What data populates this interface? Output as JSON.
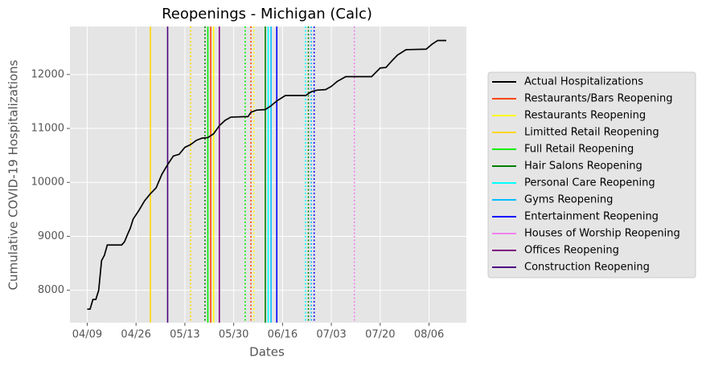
{
  "chart_data": {
    "type": "line",
    "title": "Reopenings - Michigan (Calc)",
    "x_label": "Dates",
    "y_label": "Cumulative COVID-19 Hospitalizations",
    "xlim": [
      "04/03",
      "08/19"
    ],
    "xticks": [
      "04/09",
      "04/26",
      "05/13",
      "05/30",
      "06/16",
      "07/03",
      "07/20",
      "08/06"
    ],
    "ylim": [
      7400,
      12890
    ],
    "yticks": [
      8000,
      9000,
      10000,
      11000,
      12000
    ],
    "grid": true,
    "legend": "right",
    "series": [
      {
        "name": "Actual Hospitalizations",
        "color": "#000000",
        "x": [
          "04/09",
          "04/10",
          "04/11",
          "04/12",
          "04/13",
          "04/14",
          "04/15",
          "04/16",
          "04/21",
          "04/22",
          "04/23",
          "04/24",
          "04/25",
          "04/27",
          "04/29",
          "05/01",
          "05/03",
          "05/05",
          "05/07",
          "05/09",
          "05/11",
          "05/13",
          "05/15",
          "05/17",
          "05/19",
          "05/21",
          "05/23",
          "05/25",
          "05/27",
          "05/29",
          "06/04",
          "06/05",
          "06/07",
          "06/10",
          "06/12",
          "06/14",
          "06/17",
          "06/24",
          "06/26",
          "06/28",
          "07/01",
          "07/03",
          "07/05",
          "07/08",
          "07/17",
          "07/20",
          "07/22",
          "07/24",
          "07/26",
          "07/29",
          "08/05",
          "08/07",
          "08/09",
          "08/12"
        ],
        "values": [
          7650,
          7650,
          7830,
          7830,
          8000,
          8550,
          8650,
          8840,
          8840,
          8900,
          9030,
          9150,
          9320,
          9480,
          9660,
          9790,
          9900,
          10150,
          10330,
          10490,
          10520,
          10650,
          10700,
          10780,
          10820,
          10830,
          10900,
          11050,
          11150,
          11210,
          11220,
          11300,
          11340,
          11350,
          11420,
          11510,
          11610,
          11610,
          11680,
          11710,
          11720,
          11780,
          11870,
          11960,
          11960,
          12120,
          12130,
          12250,
          12360,
          12460,
          12470,
          12560,
          12630,
          12630
        ]
      },
      {
        "name": "Restaurants/Bars Reopening",
        "color": "#ff4500",
        "lines": [
          {
            "x": "05/22",
            "style": "solid"
          },
          {
            "x": "06/05",
            "style": "dotted"
          }
        ]
      },
      {
        "name": "Restaurants Reopening",
        "color": "#ffff00",
        "lines": [
          {
            "x": "05/23",
            "style": "solid"
          },
          {
            "x": "06/06",
            "style": "dotted"
          }
        ]
      },
      {
        "name": "Limitted Retail Reopening",
        "color": "#ffd700",
        "lines": [
          {
            "x": "05/01",
            "style": "solid"
          },
          {
            "x": "05/15",
            "style": "dotted"
          }
        ]
      },
      {
        "name": "Full Retail Reopening",
        "color": "#00ee00",
        "lines": [
          {
            "x": "05/21",
            "style": "solid"
          },
          {
            "x": "06/03",
            "style": "dotted"
          }
        ]
      },
      {
        "name": "Hair Salons Reopening",
        "color": "#008000",
        "lines": [
          {
            "x": "05/20",
            "style": "dotted"
          },
          {
            "x": "06/10",
            "style": "solid"
          },
          {
            "x": "06/25",
            "style": "dotted"
          }
        ]
      },
      {
        "name": "Personal Care Reopening",
        "color": "#00ffff",
        "lines": [
          {
            "x": "06/11",
            "style": "solid"
          },
          {
            "x": "06/24",
            "style": "dotted"
          }
        ]
      },
      {
        "name": "Gyms Reopening",
        "color": "#00bfff",
        "lines": [
          {
            "x": "06/12",
            "style": "solid"
          },
          {
            "x": "06/26",
            "style": "dotted"
          }
        ]
      },
      {
        "name": "Entertainment Reopening",
        "color": "#0000ff",
        "lines": [
          {
            "x": "06/14",
            "style": "solid"
          },
          {
            "x": "06/27",
            "style": "dotted"
          }
        ]
      },
      {
        "name": "Houses of Worship Reopening",
        "color": "#ee82ee",
        "lines": [
          {
            "x": "07/11",
            "style": "dotted"
          }
        ]
      },
      {
        "name": "Offices Reopening",
        "color": "#800080",
        "lines": [
          {
            "x": "05/25",
            "style": "solid"
          }
        ]
      },
      {
        "name": "Construction Reopening",
        "color": "#4b0082",
        "lines": [
          {
            "x": "05/07",
            "style": "solid"
          }
        ]
      }
    ]
  }
}
